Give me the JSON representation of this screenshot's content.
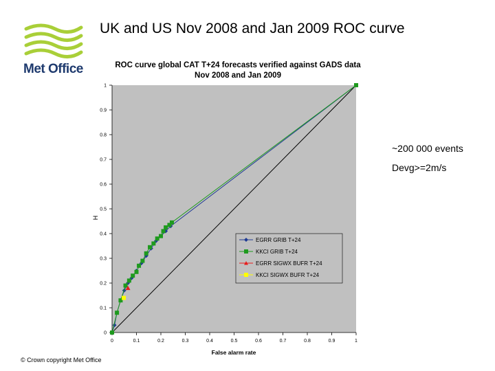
{
  "slide": {
    "title": "UK and US Nov 2008 and Jan 2009 ROC curve",
    "brand": "Met Office",
    "notes": [
      "~200 000 events",
      "Devg>=2m/s"
    ],
    "copyright": "© Crown copyright   Met Office"
  },
  "colors": {
    "brand_green": "#a9cf38",
    "brand_navy": "#1e3a6e",
    "plot_bg": "#c0c0c0",
    "egrr_grib": "#1f3a93",
    "kkci_grib": "#1e9a1e",
    "egrr_sigwx": "#e81c1c",
    "kkci_sigwx": "#ffff00",
    "diagonal": "#000000"
  },
  "chart_data": {
    "type": "line",
    "title": "ROC curve global CAT T+24 forecasts verified against GADS data",
    "subtitle": "Nov 2008 and Jan 2009",
    "xlabel": "False alarm rate",
    "ylabel": "H",
    "xlim": [
      0,
      1
    ],
    "ylim": [
      0,
      1
    ],
    "xticks": [
      "0",
      "0.1",
      "0.2",
      "0.3",
      "0.4",
      "0.5",
      "0.6",
      "0.7",
      "0.8",
      "0.9",
      "1"
    ],
    "yticks": [
      "0",
      "0.1",
      "0.2",
      "0.3",
      "0.4",
      "0.5",
      "0.6",
      "0.7",
      "0.8",
      "0.9",
      "1"
    ],
    "grid": false,
    "legend_position": "center-right",
    "series": [
      {
        "name": "EGRR GRIB T+24",
        "marker": "diamond",
        "color": "#1f3a93",
        "points": [
          [
            0,
            0
          ],
          [
            0.01,
            0.03
          ],
          [
            0.02,
            0.08
          ],
          [
            0.035,
            0.13
          ],
          [
            0.05,
            0.17
          ],
          [
            0.065,
            0.2
          ],
          [
            0.08,
            0.22
          ],
          [
            0.1,
            0.25
          ],
          [
            0.12,
            0.28
          ],
          [
            0.14,
            0.31
          ],
          [
            0.16,
            0.34
          ],
          [
            0.18,
            0.37
          ],
          [
            0.2,
            0.39
          ],
          [
            0.22,
            0.41
          ],
          [
            0.24,
            0.43
          ],
          [
            1,
            1
          ]
        ]
      },
      {
        "name": "KKCI GRIB T+24",
        "marker": "square",
        "color": "#1e9a1e",
        "points": [
          [
            0,
            0
          ],
          [
            0.02,
            0.08
          ],
          [
            0.035,
            0.13
          ],
          [
            0.055,
            0.19
          ],
          [
            0.07,
            0.21
          ],
          [
            0.085,
            0.23
          ],
          [
            0.1,
            0.245
          ],
          [
            0.11,
            0.27
          ],
          [
            0.125,
            0.29
          ],
          [
            0.14,
            0.32
          ],
          [
            0.155,
            0.345
          ],
          [
            0.17,
            0.36
          ],
          [
            0.185,
            0.38
          ],
          [
            0.2,
            0.39
          ],
          [
            0.21,
            0.41
          ],
          [
            0.22,
            0.425
          ],
          [
            0.235,
            0.435
          ],
          [
            0.245,
            0.445
          ],
          [
            1,
            1
          ]
        ]
      },
      {
        "name": "EGRR SIGWX BUFR T+24",
        "marker": "triangle",
        "color": "#e81c1c",
        "points": [
          [
            0.065,
            0.18
          ]
        ]
      },
      {
        "name": "KKCI SIGWX BUFR T+24",
        "marker": "square",
        "color": "#ffff00",
        "points": [
          [
            0.048,
            0.14
          ]
        ]
      }
    ]
  }
}
